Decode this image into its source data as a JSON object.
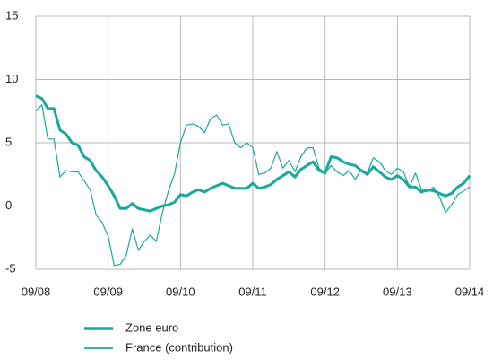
{
  "chart_data": {
    "type": "line",
    "categories": [
      "09/08",
      null,
      null,
      null,
      null,
      null,
      null,
      null,
      null,
      null,
      null,
      null,
      "09/09",
      null,
      null,
      null,
      null,
      null,
      null,
      null,
      null,
      null,
      null,
      null,
      "09/10",
      null,
      null,
      null,
      null,
      null,
      null,
      null,
      null,
      null,
      null,
      null,
      "09/11",
      null,
      null,
      null,
      null,
      null,
      null,
      null,
      null,
      null,
      null,
      null,
      "09/12",
      null,
      null,
      null,
      null,
      null,
      null,
      null,
      null,
      null,
      null,
      null,
      "09/13",
      null,
      null,
      null,
      null,
      null,
      null,
      null,
      null,
      null,
      null,
      null,
      "09/14"
    ],
    "series": [
      {
        "name": "Zone euro",
        "color": "#1aa89a",
        "width": 3,
        "values": [
          8.7,
          8.5,
          7.7,
          7.7,
          6,
          5.7,
          5,
          4.8,
          3.9,
          3.6,
          2.8,
          2.3,
          1.6,
          0.8,
          -0.2,
          -0.2,
          0.2,
          -0.2,
          -0.3,
          -0.4,
          -0.2,
          0,
          0.1,
          0.3,
          0.9,
          0.8,
          1.1,
          1.3,
          1.1,
          1.4,
          1.6,
          1.8,
          1.6,
          1.4,
          1.4,
          1.4,
          1.8,
          1.4,
          1.5,
          1.7,
          2.1,
          2.4,
          2.7,
          2.3,
          2.9,
          3.2,
          3.5,
          2.8,
          2.6,
          3.9,
          3.8,
          3.5,
          3.3,
          3.2,
          2.8,
          2.5,
          3.1,
          2.7,
          2.3,
          2.1,
          2.4,
          2.1,
          1.5,
          1.5,
          1.1,
          1.3,
          1.2,
          1.0,
          0.8,
          1.0,
          1.5,
          1.8,
          2.4
        ]
      },
      {
        "name": "France (contribution)",
        "color": "#1aa89a",
        "width": 1.2,
        "values": [
          7.5,
          8,
          5.3,
          5.3,
          2.3,
          2.8,
          2.7,
          2.7,
          2,
          1.3,
          -0.7,
          -1.3,
          -2.4,
          -4.7,
          -4.6,
          -3.9,
          -1.8,
          -3.5,
          -2.8,
          -2.3,
          -2.8,
          -0.5,
          1.2,
          2.5,
          5,
          6.4,
          6.5,
          6.3,
          5.8,
          6.9,
          7.2,
          6.4,
          6.5,
          5,
          4.6,
          5,
          4.6,
          2.5,
          2.6,
          3,
          4.3,
          3,
          3.6,
          2.7,
          3.9,
          4.6,
          4.6,
          3,
          2.6,
          3.2,
          2.7,
          2.4,
          2.8,
          2.1,
          2.9,
          2.6,
          3.8,
          3.5,
          2.8,
          2.5,
          3,
          2.7,
          1.5,
          2.6,
          1.3,
          1.1,
          1.5,
          0.7,
          -0.5,
          0.1,
          0.9,
          1.2,
          1.5
        ]
      }
    ],
    "ylim": [
      -5,
      15
    ],
    "yticks": [
      -5,
      0,
      5,
      10,
      15
    ],
    "grid": true,
    "legend": "bottom-left"
  }
}
